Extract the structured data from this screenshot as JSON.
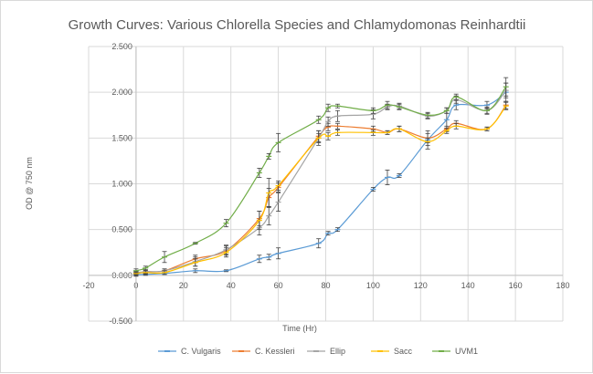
{
  "chart_data": {
    "type": "line",
    "title": "Growth Curves: Various Chlorella Species and Chlamydomonas Reinhardtii",
    "xlabel": "Time (Hr)",
    "ylabel": "OD @ 750 nm",
    "xlim": [
      -20,
      180
    ],
    "ylim": [
      -0.5,
      2.5
    ],
    "x_ticks": [
      -20,
      0,
      20,
      40,
      60,
      80,
      100,
      120,
      140,
      160,
      180
    ],
    "x_tick_labels": [
      "-20",
      "0",
      "20",
      "40",
      "60",
      "80",
      "100",
      "120",
      "140",
      "160",
      "180"
    ],
    "y_ticks": [
      -0.5,
      0,
      0.5,
      1,
      1.5,
      2,
      2.5
    ],
    "y_tick_labels": [
      "-0.500",
      "0.000",
      "0.500",
      "1.000",
      "1.500",
      "2.000",
      "2.500"
    ],
    "grid": true,
    "legend_position": "bottom",
    "series": [
      {
        "name": "C. Vulgaris",
        "color": "#5b9bd5",
        "x": [
          0,
          4,
          12,
          25,
          38,
          52,
          56,
          60,
          77,
          81,
          85,
          100,
          106,
          111,
          123,
          131,
          135,
          148,
          156
        ],
        "y": [
          0.01,
          0.01,
          0.02,
          0.05,
          0.05,
          0.18,
          0.2,
          0.24,
          0.35,
          0.46,
          0.5,
          0.94,
          1.07,
          1.09,
          1.48,
          1.7,
          1.86,
          1.86,
          2.0
        ],
        "err": [
          0.02,
          0.01,
          0.01,
          0.02,
          0.01,
          0.04,
          0.03,
          0.06,
          0.05,
          0.02,
          0.02,
          0.02,
          0.08,
          0.02,
          0.1,
          0.1,
          0.05,
          0.04,
          0.1
        ]
      },
      {
        "name": "C. Kessleri",
        "color": "#ed7d31",
        "x": [
          0,
          4,
          12,
          25,
          38,
          52,
          56,
          60,
          77,
          81,
          85,
          100,
          106,
          111,
          123,
          131,
          135,
          148,
          156
        ],
        "y": [
          0.02,
          0.04,
          0.05,
          0.18,
          0.27,
          0.62,
          0.85,
          0.96,
          1.52,
          1.62,
          1.63,
          1.6,
          1.56,
          1.6,
          1.5,
          1.6,
          1.66,
          1.6,
          1.86
        ],
        "err": [
          0.02,
          0.02,
          0.02,
          0.04,
          0.05,
          0.08,
          0.1,
          0.05,
          0.06,
          0.04,
          0.03,
          0.03,
          0.02,
          0.03,
          0.05,
          0.03,
          0.03,
          0.02,
          0.04
        ]
      },
      {
        "name": "Ellip",
        "color": "#a5a5a5",
        "x": [
          0,
          4,
          12,
          25,
          38,
          52,
          56,
          60,
          77,
          81,
          85,
          100,
          106,
          111,
          123,
          131,
          135,
          148,
          156
        ],
        "y": [
          0.03,
          0.04,
          0.05,
          0.15,
          0.28,
          0.52,
          0.65,
          0.8,
          1.5,
          1.68,
          1.74,
          1.76,
          1.84,
          1.85,
          1.74,
          1.8,
          1.92,
          1.8,
          2.02
        ],
        "err": [
          0.02,
          0.02,
          0.02,
          0.05,
          0.05,
          0.08,
          0.1,
          0.1,
          0.08,
          0.05,
          0.06,
          0.05,
          0.03,
          0.03,
          0.03,
          0.03,
          0.04,
          0.04,
          0.08
        ]
      },
      {
        "name": "Sacc",
        "color": "#ffc000",
        "x": [
          0,
          4,
          12,
          25,
          38,
          52,
          56,
          60,
          77,
          81,
          85,
          100,
          106,
          111,
          123,
          131,
          135,
          148,
          156
        ],
        "y": [
          0.02,
          0.03,
          0.03,
          0.14,
          0.25,
          0.6,
          0.9,
          0.98,
          1.5,
          1.52,
          1.56,
          1.56,
          1.56,
          1.6,
          1.46,
          1.58,
          1.63,
          1.6,
          1.85
        ],
        "err": [
          0.02,
          0.02,
          0.02,
          0.04,
          0.05,
          0.1,
          0.16,
          0.05,
          0.05,
          0.04,
          0.03,
          0.03,
          0.02,
          0.03,
          0.04,
          0.03,
          0.03,
          0.02,
          0.04
        ]
      },
      {
        "name": "UVM1",
        "color": "#70ad47",
        "x": [
          0,
          4,
          12,
          25,
          38,
          52,
          56,
          60,
          77,
          81,
          85,
          100,
          106,
          111,
          123,
          131,
          135,
          148,
          156
        ],
        "y": [
          0.05,
          0.08,
          0.2,
          0.35,
          0.57,
          1.12,
          1.3,
          1.45,
          1.7,
          1.83,
          1.85,
          1.8,
          1.86,
          1.84,
          1.75,
          1.8,
          1.95,
          1.8,
          2.06
        ],
        "err": [
          0.02,
          0.02,
          0.06,
          0.01,
          0.04,
          0.05,
          0.03,
          0.1,
          0.04,
          0.04,
          0.02,
          0.03,
          0.04,
          0.03,
          0.03,
          0.03,
          0.03,
          0.03,
          0.1
        ]
      }
    ]
  }
}
